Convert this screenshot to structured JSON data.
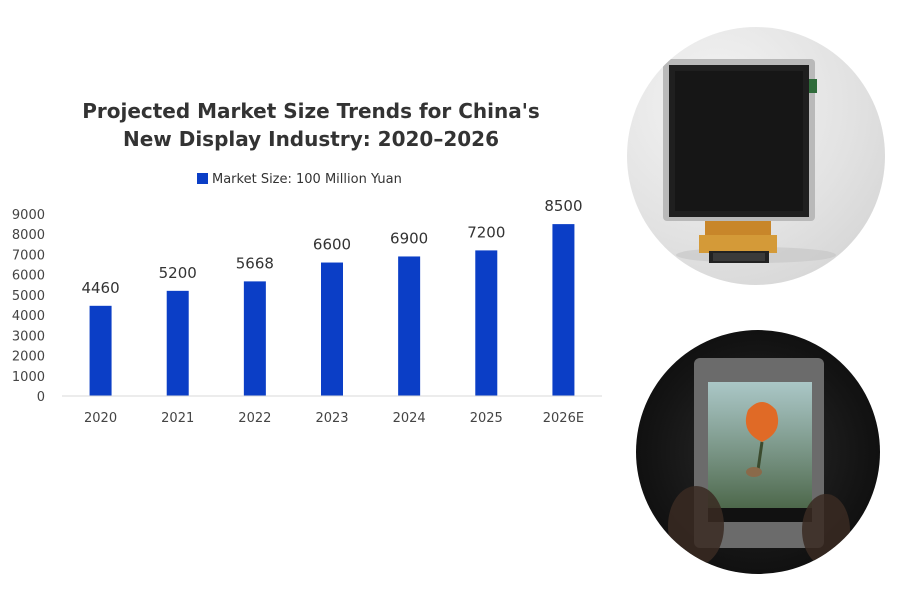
{
  "chart_data": {
    "type": "bar",
    "title_lines": [
      "Projected Market Size Trends for China's",
      "New Display Industry: 2020–2026"
    ],
    "categories": [
      "2020",
      "2021",
      "2022",
      "2023",
      "2024",
      "2025",
      "2026E"
    ],
    "series": [
      {
        "name": "Market Size: 100 Million Yuan",
        "values": [
          4460,
          5200,
          5668,
          6600,
          6900,
          7200,
          8500
        ],
        "data_labels": [
          "4460",
          "5200",
          "5668",
          "6600",
          "6900",
          "7200",
          "8500"
        ]
      }
    ],
    "ylim": [
      0,
      9000
    ],
    "yticks": [
      "0",
      "1000",
      "2000",
      "3000",
      "4000",
      "5000",
      "6000",
      "7000",
      "8000",
      "9000"
    ],
    "grid": false,
    "legend_position": "top-center",
    "bar_color": "#0b3ec6"
  },
  "photos": {
    "top": {
      "subject": "square-lcd-display-panel-with-flex-cable"
    },
    "bottom": {
      "subject": "small-screen-showing-orange-flower-in-rain"
    }
  }
}
